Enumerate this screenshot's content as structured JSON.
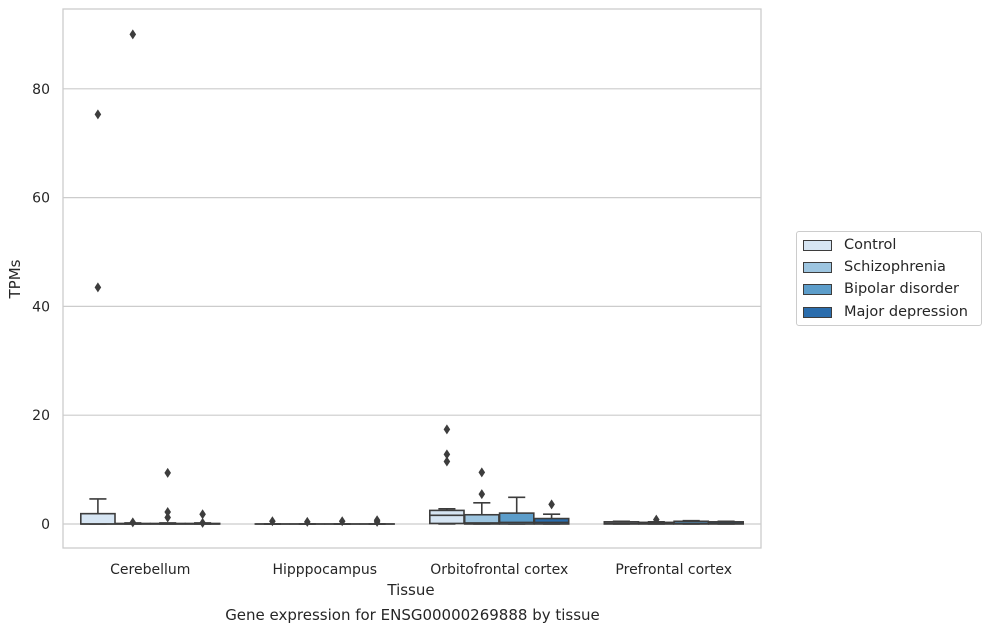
{
  "chart_data": {
    "type": "box",
    "xlabel": "Tissue",
    "ylabel": "TPMs",
    "caption": "Gene expression for ENSG00000269888 by tissue",
    "ylim": [
      -4.4,
      95.2
    ],
    "yticks": [
      0,
      20,
      40,
      60,
      80
    ],
    "categories": [
      "Cerebellum",
      "Hipppocampus",
      "Orbitofrontal cortex",
      "Prefrontal cortex"
    ],
    "grid": true,
    "legend_position": "right",
    "series": [
      {
        "name": "Control",
        "color": "#d6e5f3",
        "boxes": [
          {
            "q1": 0,
            "median": 0,
            "q3": 1.9,
            "whisker_low": 0,
            "whisker_high": 4.6,
            "outliers": [
              43.5,
              75.3
            ]
          },
          {
            "q1": 0,
            "median": 0,
            "q3": 0,
            "whisker_low": 0,
            "whisker_high": 0,
            "outliers": [
              0.5
            ]
          },
          {
            "q1": 0.1,
            "median": 1.6,
            "q3": 2.5,
            "whisker_low": 0,
            "whisker_high": 2.8,
            "outliers": [
              11.5,
              12.8,
              17.4
            ]
          },
          {
            "q1": 0,
            "median": 0.1,
            "q3": 0.4,
            "whisker_low": 0,
            "whisker_high": 0.5,
            "outliers": []
          }
        ]
      },
      {
        "name": "Schizophrenia",
        "color": "#9dc5e0",
        "boxes": [
          {
            "q1": 0,
            "median": 0,
            "q3": 0.1,
            "whisker_low": 0,
            "whisker_high": 0.2,
            "outliers": [
              0.3,
              90.0
            ]
          },
          {
            "q1": 0,
            "median": 0,
            "q3": 0,
            "whisker_low": 0,
            "whisker_high": 0,
            "outliers": [
              0.4
            ]
          },
          {
            "q1": 0,
            "median": 0.2,
            "q3": 1.7,
            "whisker_low": 0,
            "whisker_high": 3.9,
            "outliers": [
              5.5,
              9.5
            ]
          },
          {
            "q1": 0,
            "median": 0.1,
            "q3": 0.3,
            "whisker_low": 0,
            "whisker_high": 0.4,
            "outliers": [
              0.8
            ]
          }
        ]
      },
      {
        "name": "Bipolar disorder",
        "color": "#5c9dca",
        "boxes": [
          {
            "q1": 0,
            "median": 0,
            "q3": 0.1,
            "whisker_low": 0,
            "whisker_high": 0.2,
            "outliers": [
              1.2,
              2.2,
              9.4
            ]
          },
          {
            "q1": 0,
            "median": 0,
            "q3": 0,
            "whisker_low": 0,
            "whisker_high": 0,
            "outliers": [
              0.5
            ]
          },
          {
            "q1": 0,
            "median": 0.3,
            "q3": 2.0,
            "whisker_low": 0,
            "whisker_high": 4.9,
            "outliers": []
          },
          {
            "q1": 0,
            "median": 0.1,
            "q3": 0.5,
            "whisker_low": 0,
            "whisker_high": 0.6,
            "outliers": []
          }
        ]
      },
      {
        "name": "Major depression",
        "color": "#2a6dad",
        "boxes": [
          {
            "q1": 0,
            "median": 0,
            "q3": 0.1,
            "whisker_low": 0,
            "whisker_high": 0.2,
            "outliers": [
              0.2,
              1.8
            ]
          },
          {
            "q1": 0,
            "median": 0,
            "q3": 0,
            "whisker_low": 0,
            "whisker_high": 0,
            "outliers": [
              0.4,
              0.7
            ]
          },
          {
            "q1": 0,
            "median": 0.3,
            "q3": 1.0,
            "whisker_low": 0,
            "whisker_high": 1.8,
            "outliers": [
              3.6
            ]
          },
          {
            "q1": 0,
            "median": 0.1,
            "q3": 0.4,
            "whisker_low": 0,
            "whisker_high": 0.5,
            "outliers": []
          }
        ]
      }
    ]
  }
}
